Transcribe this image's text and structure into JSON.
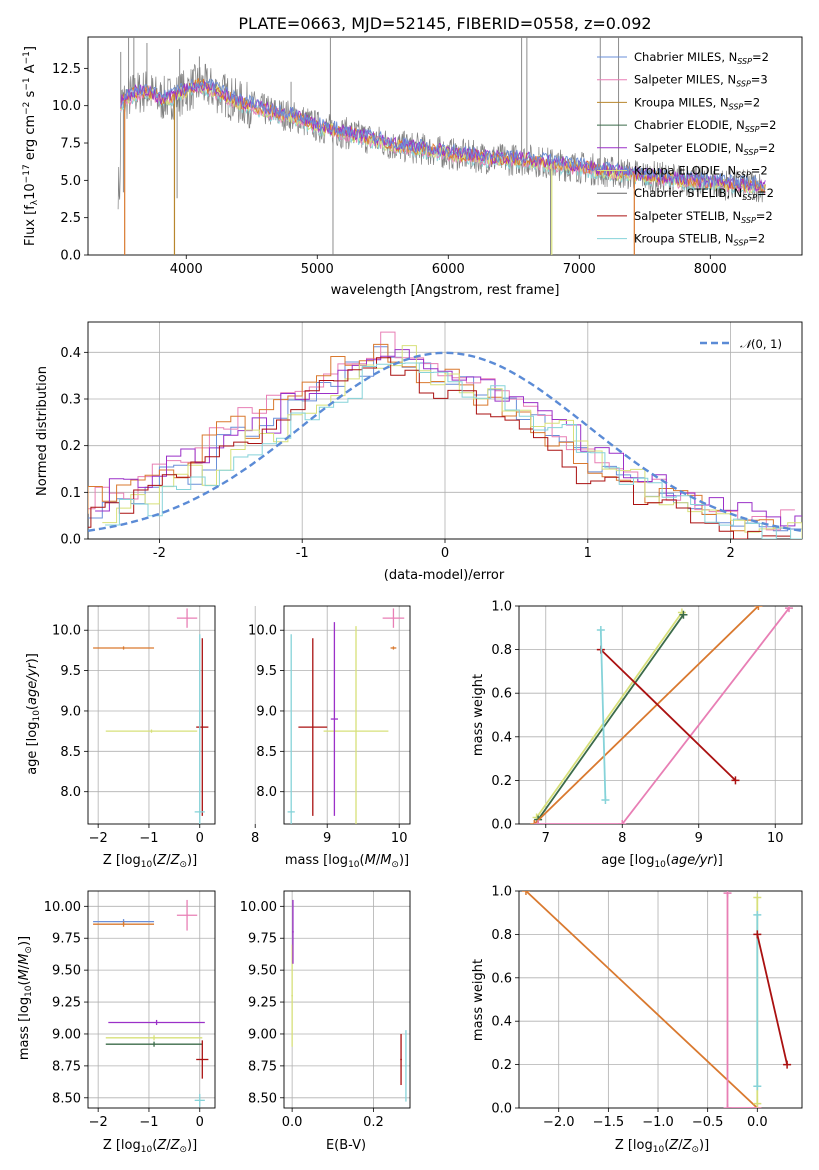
{
  "colors": {
    "chabrier_miles": "#6a8fd8",
    "salpeter_miles": "#e87fb5",
    "kroupa_miles": "#b8862d",
    "chabrier_elodie": "#3b6b4a",
    "salpeter_elodie": "#9b30c8",
    "kroupa_elodie": "#d7e07a",
    "chabrier_stelib": "#666666",
    "salpeter_stelib": "#aa1111",
    "kroupa_stelib": "#86d3d9",
    "data": "#808080",
    "orange": "#d9792f",
    "normal": "#5b8bd6",
    "grid": "#b0b0b0"
  },
  "chart_data": [
    {
      "id": "spectrum",
      "type": "line",
      "title": "PLATE=0663, MJD=52145, FIBERID=0558, z=0.092",
      "xlabel": "wavelength [Angstrom, rest frame]",
      "ylabel": "Flux [f_λ10^-17 erg cm^-2 s^-1 A^-1]",
      "xlim": [
        3250,
        8700
      ],
      "ylim": [
        0,
        14.6
      ],
      "xticks": [
        4000,
        5000,
        6000,
        7000,
        8000
      ],
      "yticks": [
        "0.0",
        "2.5",
        "5.0",
        "7.5",
        "10.0",
        "12.5"
      ],
      "grid": false,
      "legend_position": "top-right",
      "legend": [
        {
          "base": "Chabrier MILES, N",
          "sub": "SSP",
          "tail": "=2",
          "color": "chabrier_miles"
        },
        {
          "base": "Salpeter MILES, N",
          "sub": "SSP",
          "tail": "=3",
          "color": "salpeter_miles"
        },
        {
          "base": "Kroupa MILES, N",
          "sub": "SSP",
          "tail": "=2",
          "color": "kroupa_miles"
        },
        {
          "base": "Chabrier ELODIE, N",
          "sub": "SSP",
          "tail": "=2",
          "color": "chabrier_elodie"
        },
        {
          "base": "Salpeter ELODIE, N",
          "sub": "SSP",
          "tail": "=2",
          "color": "salpeter_elodie"
        },
        {
          "base": "Kroupa ELODIE, N",
          "sub": "SSP",
          "tail": "=2",
          "color": "kroupa_elodie"
        },
        {
          "base": "Chabrier STELIB, N",
          "sub": "SSP",
          "tail": "=2",
          "color": "chabrier_stelib"
        },
        {
          "base": "Salpeter STELIB, N",
          "sub": "SSP",
          "tail": "=2",
          "color": "salpeter_stelib"
        },
        {
          "base": "Kroupa STELIB, N",
          "sub": "SSP",
          "tail": "=2",
          "color": "kroupa_stelib"
        }
      ],
      "continuum": [
        [
          3500,
          10.2
        ],
        [
          3600,
          10.8
        ],
        [
          3700,
          11.0
        ],
        [
          3800,
          10.4
        ],
        [
          3900,
          10.6
        ],
        [
          4000,
          11.0
        ],
        [
          4100,
          11.4
        ],
        [
          4200,
          11.1
        ],
        [
          4300,
          10.7
        ],
        [
          4400,
          10.2
        ],
        [
          4500,
          10.0
        ],
        [
          4600,
          9.7
        ],
        [
          4700,
          9.5
        ],
        [
          4800,
          9.3
        ],
        [
          4900,
          9.0
        ],
        [
          5000,
          8.6
        ],
        [
          5200,
          8.2
        ],
        [
          5400,
          7.8
        ],
        [
          5600,
          7.3
        ],
        [
          5800,
          7.1
        ],
        [
          6000,
          6.8
        ],
        [
          6200,
          6.6
        ],
        [
          6400,
          6.4
        ],
        [
          6600,
          6.4
        ],
        [
          6800,
          6.1
        ],
        [
          7000,
          5.9
        ],
        [
          7200,
          5.6
        ],
        [
          7400,
          5.4
        ],
        [
          7600,
          5.2
        ],
        [
          7800,
          5.0
        ],
        [
          8000,
          4.8
        ],
        [
          8200,
          4.7
        ],
        [
          8400,
          4.6
        ]
      ],
      "data_spikes": [
        [
          3500,
          13.6
        ],
        [
          3560,
          14.6
        ],
        [
          3600,
          14.6
        ],
        [
          3700,
          14.2
        ],
        [
          3950,
          13.8
        ],
        [
          4100,
          13.3
        ],
        [
          4800,
          11.6
        ],
        [
          5100,
          14.6
        ],
        [
          6560,
          14.6
        ],
        [
          6600,
          14.6
        ],
        [
          7160,
          14.6
        ],
        [
          7300,
          14.6
        ],
        [
          3520,
          4.2
        ],
        [
          3930,
          3.8
        ],
        [
          5120,
          0.0
        ],
        [
          6780,
          0.0
        ]
      ],
      "model_dropouts": [
        {
          "x": 3530,
          "low": 0.0,
          "color": "orange"
        },
        {
          "x": 3910,
          "low": 0.0,
          "color": "kroupa_miles"
        },
        {
          "x": 6790,
          "low": 0.0,
          "color": "kroupa_elodie"
        },
        {
          "x": 7420,
          "low": 0.0,
          "color": "orange"
        }
      ]
    },
    {
      "id": "residuals",
      "type": "line",
      "xlabel": "(data-model)/error",
      "ylabel": "Normed distribution",
      "xlim": [
        -2.5,
        2.5
      ],
      "ylim": [
        0,
        0.465
      ],
      "xticks": [
        -2,
        -1,
        0,
        1,
        2
      ],
      "yticks": [
        "0.0",
        "0.1",
        "0.2",
        "0.3",
        "0.4"
      ],
      "grid": true,
      "legend_position": "top-right",
      "legend_label": "N(0, 1)",
      "hist": [
        0.07,
        0.1,
        0.09,
        0.09,
        0.11,
        0.14,
        0.16,
        0.14,
        0.17,
        0.2,
        0.22,
        0.24,
        0.23,
        0.28,
        0.29,
        0.3,
        0.32,
        0.34,
        0.36,
        0.37,
        0.39,
        0.4,
        0.38,
        0.36,
        0.35,
        0.34,
        0.33,
        0.32,
        0.3,
        0.29,
        0.27,
        0.26,
        0.24,
        0.21,
        0.18,
        0.16,
        0.15,
        0.14,
        0.12,
        0.1,
        0.09,
        0.08,
        0.07,
        0.06,
        0.05,
        0.04,
        0.03,
        0.03,
        0.02,
        0.02
      ],
      "hist_offsets": [
        {
          "color": "chabrier_miles",
          "dx": 0.0,
          "dy": 0.0
        },
        {
          "color": "salpeter_miles",
          "dx": -0.05,
          "dy": 0.02
        },
        {
          "color": "orange",
          "dx": -0.1,
          "dy": 0.01
        },
        {
          "color": "salpeter_elodie",
          "dx": 0.05,
          "dy": 0.015
        },
        {
          "color": "kroupa_elodie",
          "dx": 0.1,
          "dy": -0.01
        },
        {
          "color": "salpeter_stelib",
          "dx": -0.08,
          "dy": -0.02
        },
        {
          "color": "kroupa_stelib",
          "dx": 0.12,
          "dy": -0.015
        }
      ]
    },
    {
      "id": "age_vs_Z",
      "type": "scatter",
      "xlabel": "Z [log10(Z/Z⊙)]",
      "ylabel": "age [log10(age/yr)]",
      "xlim": [
        -2.2,
        0.3
      ],
      "ylim": [
        7.6,
        10.3
      ],
      "xticks": [
        "−2",
        "−1",
        "0"
      ],
      "xtickvals": [
        -2,
        -1,
        0
      ],
      "yticks": [
        "8.0",
        "8.5",
        "9.0",
        "9.5",
        "10.0"
      ],
      "ytickvals": [
        8.0,
        8.5,
        9.0,
        9.5,
        10.0
      ],
      "grid": true,
      "points": [
        {
          "x": -1.5,
          "y": 9.78,
          "xerr": 0.6,
          "yerr": 0.02,
          "color": "orange"
        },
        {
          "x": -0.25,
          "y": 10.15,
          "xerr": 0.2,
          "yerr": 0.12,
          "color": "salpeter_miles"
        },
        {
          "x": -0.95,
          "y": 8.75,
          "xerr": 0.9,
          "yerr": 0.02,
          "color": "kroupa_elodie"
        },
        {
          "x": 0.05,
          "y": 8.8,
          "xerr": 0.12,
          "yerr": 1.1,
          "color": "salpeter_stelib"
        },
        {
          "x": 0.0,
          "y": 7.75,
          "xerr": 0.1,
          "yerr": 2.2,
          "color": "kroupa_stelib"
        }
      ]
    },
    {
      "id": "age_vs_mass",
      "type": "scatter",
      "xlabel": "mass [log10(M/M⊙)]",
      "ylabel": "",
      "xlim": [
        8.4,
        10.15
      ],
      "ylim": [
        7.6,
        10.3
      ],
      "xticks": [
        "8",
        "9",
        "10"
      ],
      "xtickvals": [
        8,
        9,
        10
      ],
      "yticks": [
        "8.0",
        "8.5",
        "9.0",
        "9.5",
        "10.0"
      ],
      "ytickvals": [
        8.0,
        8.5,
        9.0,
        9.5,
        10.0
      ],
      "grid": true,
      "points": [
        {
          "x": 9.92,
          "y": 9.78,
          "xerr": 0.04,
          "yerr": 0.02,
          "color": "orange"
        },
        {
          "x": 9.92,
          "y": 10.15,
          "xerr": 0.15,
          "yerr": 0.12,
          "color": "salpeter_miles"
        },
        {
          "x": 9.4,
          "y": 8.75,
          "xerr": 0.45,
          "yerr": 1.3,
          "color": "kroupa_elodie"
        },
        {
          "x": 8.8,
          "y": 8.8,
          "xerr": 0.2,
          "yerr": 1.1,
          "color": "salpeter_stelib"
        },
        {
          "x": 8.5,
          "y": 7.75,
          "xerr": 0.05,
          "yerr": 2.2,
          "color": "kroupa_stelib"
        },
        {
          "x": 9.1,
          "y": 8.9,
          "xerr": 0.05,
          "yerr": 1.2,
          "color": "salpeter_elodie"
        }
      ]
    },
    {
      "id": "weight_vs_age",
      "type": "line",
      "xlabel": "age [log10(age/yr)]",
      "ylabel": "mass weight",
      "xlim": [
        6.65,
        10.35
      ],
      "ylim": [
        0.0,
        1.0
      ],
      "xticks": [
        "7",
        "8",
        "9",
        "10"
      ],
      "xtickvals": [
        7,
        8,
        9,
        10
      ],
      "yticks": [
        "0.0",
        "0.2",
        "0.4",
        "0.6",
        "0.8",
        "1.0"
      ],
      "ytickvals": [
        0.0,
        0.2,
        0.4,
        0.6,
        0.8,
        1.0
      ],
      "grid": true,
      "series": [
        {
          "color": "kroupa_elodie",
          "x": [
            6.88,
            8.78
          ],
          "y": [
            0.03,
            0.97
          ]
        },
        {
          "color": "chabrier_elodie",
          "x": [
            6.9,
            8.8
          ],
          "y": [
            0.02,
            0.96
          ]
        },
        {
          "color": "orange",
          "x": [
            6.85,
            9.78
          ],
          "y": [
            0.0,
            1.0
          ]
        },
        {
          "color": "salpeter_miles",
          "x": [
            6.9,
            8.0,
            10.18
          ],
          "y": [
            0.0,
            0.0,
            0.99
          ]
        },
        {
          "color": "salpeter_stelib",
          "x": [
            7.72,
            9.48
          ],
          "y": [
            0.8,
            0.2
          ]
        },
        {
          "color": "kroupa_stelib",
          "x": [
            7.72,
            7.78
          ],
          "y": [
            0.89,
            0.11
          ]
        }
      ]
    },
    {
      "id": "mass_vs_Z",
      "type": "scatter",
      "xlabel": "Z [log10(Z/Z⊙)]",
      "ylabel": "mass [log10(M/M⊙)]",
      "xlim": [
        -2.2,
        0.3
      ],
      "ylim": [
        8.42,
        10.12
      ],
      "xticks": [
        "−2",
        "−1",
        "0"
      ],
      "xtickvals": [
        -2,
        -1,
        0
      ],
      "yticks": [
        "8.50",
        "8.75",
        "9.00",
        "9.25",
        "9.50",
        "9.75",
        "10.00"
      ],
      "ytickvals": [
        8.5,
        8.75,
        9.0,
        9.25,
        9.5,
        9.75,
        10.0
      ],
      "grid": true,
      "points": [
        {
          "x": -1.5,
          "y": 9.88,
          "xerr": 0.6,
          "yerr": 0.02,
          "color": "chabrier_miles"
        },
        {
          "x": -1.5,
          "y": 9.86,
          "xerr": 0.6,
          "yerr": 0.02,
          "color": "orange"
        },
        {
          "x": -0.25,
          "y": 9.93,
          "xerr": 0.2,
          "yerr": 0.12,
          "color": "salpeter_miles"
        },
        {
          "x": -0.85,
          "y": 9.09,
          "xerr": 0.95,
          "yerr": 0.02,
          "color": "salpeter_elodie"
        },
        {
          "x": -0.9,
          "y": 8.97,
          "xerr": 0.95,
          "yerr": 0.02,
          "color": "kroupa_elodie"
        },
        {
          "x": -0.9,
          "y": 8.92,
          "xerr": 0.95,
          "yerr": 0.02,
          "color": "chabrier_elodie"
        },
        {
          "x": 0.05,
          "y": 8.8,
          "xerr": 0.12,
          "yerr": 0.15,
          "color": "salpeter_stelib"
        },
        {
          "x": 0.0,
          "y": 8.48,
          "xerr": 0.1,
          "yerr": 0.05,
          "color": "kroupa_stelib"
        }
      ]
    },
    {
      "id": "mass_vs_ebv",
      "type": "scatter",
      "xlabel": "E(B-V)",
      "ylabel": "",
      "xlim": [
        -0.02,
        0.29
      ],
      "ylim": [
        8.42,
        10.12
      ],
      "xticks": [
        "0.0",
        "0.2"
      ],
      "xtickvals": [
        0.0,
        0.2
      ],
      "yticks": [
        "8.50",
        "8.75",
        "9.00",
        "9.25",
        "9.50",
        "9.75",
        "10.00"
      ],
      "ytickvals": [
        8.5,
        8.75,
        9.0,
        9.25,
        9.5,
        9.75,
        10.0
      ],
      "grid": true,
      "points": [
        {
          "x": 0.0,
          "y": 9.3,
          "xerr": 0.002,
          "yerr": 0.4,
          "color": "kroupa_elodie"
        },
        {
          "x": 0.002,
          "y": 9.8,
          "xerr": 0.002,
          "yerr": 0.25,
          "color": "salpeter_elodie"
        },
        {
          "x": 0.268,
          "y": 8.8,
          "xerr": 0.002,
          "yerr": 0.2,
          "color": "salpeter_stelib"
        },
        {
          "x": 0.28,
          "y": 8.75,
          "xerr": 0.002,
          "yerr": 0.28,
          "color": "kroupa_stelib"
        }
      ]
    },
    {
      "id": "weight_vs_Z",
      "type": "line",
      "xlabel": "Z [log10(Z/Z⊙)]",
      "ylabel": "mass weight",
      "xlim": [
        -2.4,
        0.45
      ],
      "ylim": [
        0.0,
        1.0
      ],
      "xticks": [
        "−2.0",
        "−1.5",
        "−1.0",
        "−0.5",
        "0.0"
      ],
      "xtickvals": [
        -2.0,
        -1.5,
        -1.0,
        -0.5,
        0.0
      ],
      "yticks": [
        "0.0",
        "0.2",
        "0.4",
        "0.6",
        "0.8",
        "1.0"
      ],
      "ytickvals": [
        0.0,
        0.2,
        0.4,
        0.6,
        0.8,
        1.0
      ],
      "grid": true,
      "series": [
        {
          "color": "orange",
          "x": [
            -2.33,
            0.0
          ],
          "y": [
            1.0,
            0.0
          ]
        },
        {
          "color": "salpeter_miles",
          "x": [
            -0.3,
            -0.3,
            0.0
          ],
          "y": [
            0.99,
            0.0,
            0.0
          ]
        },
        {
          "color": "kroupa_elodie",
          "x": [
            0.0,
            0.0
          ],
          "y": [
            0.97,
            0.02
          ]
        },
        {
          "color": "kroupa_stelib",
          "x": [
            0.0,
            0.0
          ],
          "y": [
            0.89,
            0.1
          ]
        },
        {
          "color": "salpeter_stelib",
          "x": [
            0.0,
            0.3
          ],
          "y": [
            0.8,
            0.2
          ]
        }
      ]
    }
  ]
}
